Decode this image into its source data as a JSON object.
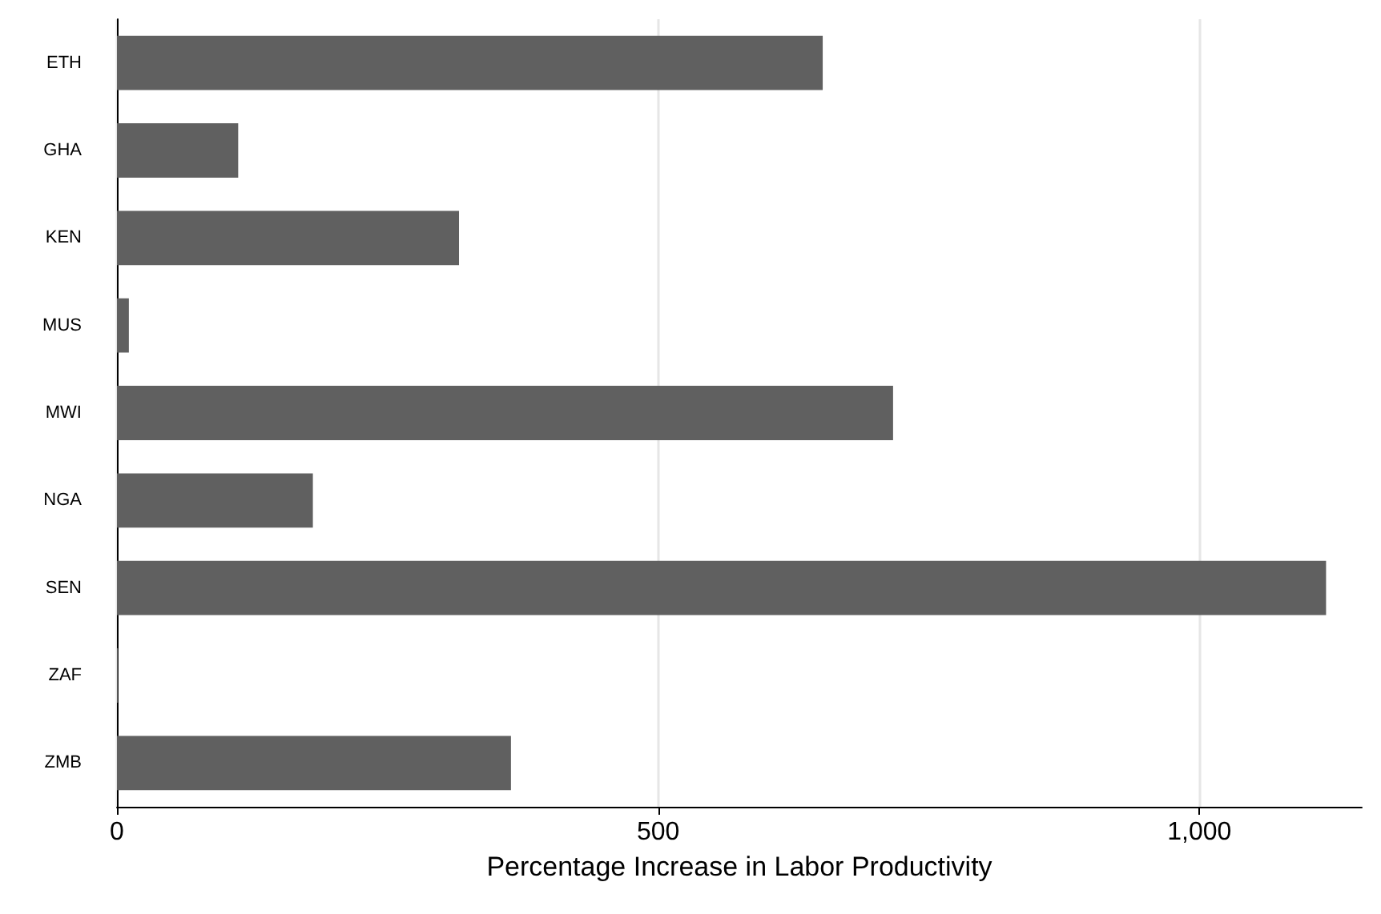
{
  "chart_data": {
    "type": "bar",
    "orientation": "horizontal",
    "xlabel": "Percentage Increase in Labor Productivity",
    "categories": [
      "ETH",
      "GHA",
      "KEN",
      "MUS",
      "MWI",
      "NGA",
      "SEN",
      "ZAF",
      "ZMB"
    ],
    "values": [
      652,
      112,
      316,
      11,
      717,
      181,
      1117,
      1,
      364
    ],
    "color": "#606060",
    "xlim": [
      0,
      1150
    ],
    "xticks": [
      0,
      500,
      {
        "value": 1000,
        "label": "1,000"
      }
    ],
    "grid": "x"
  }
}
